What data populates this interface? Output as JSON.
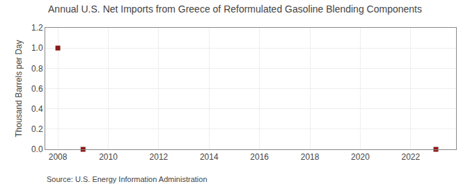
{
  "chart_data": {
    "type": "scatter",
    "title": "Annual U.S. Net Imports from Greece of Reformulated Gasoline Blending Components",
    "y_label": "Thousand Barrels per Day",
    "annotations": [
      "Source: U.S. Energy Information Administration"
    ],
    "x": [
      2008,
      2009,
      2023
    ],
    "values": [
      1.0,
      0.0,
      0.0
    ],
    "color": "#8b1a1a",
    "marker": "square",
    "xlim": [
      2007.5,
      2023.8
    ],
    "xticks": [
      2008,
      2010,
      2012,
      2014,
      2016,
      2018,
      2020,
      2022
    ],
    "ylim": [
      0.0,
      1.2
    ],
    "yticks": [
      {
        "value": 0.0,
        "label": "0.0"
      },
      0.2,
      0.4,
      0.6,
      0.8,
      {
        "value": 1.0,
        "label": "1.0"
      },
      1.2
    ],
    "grid": true
  }
}
